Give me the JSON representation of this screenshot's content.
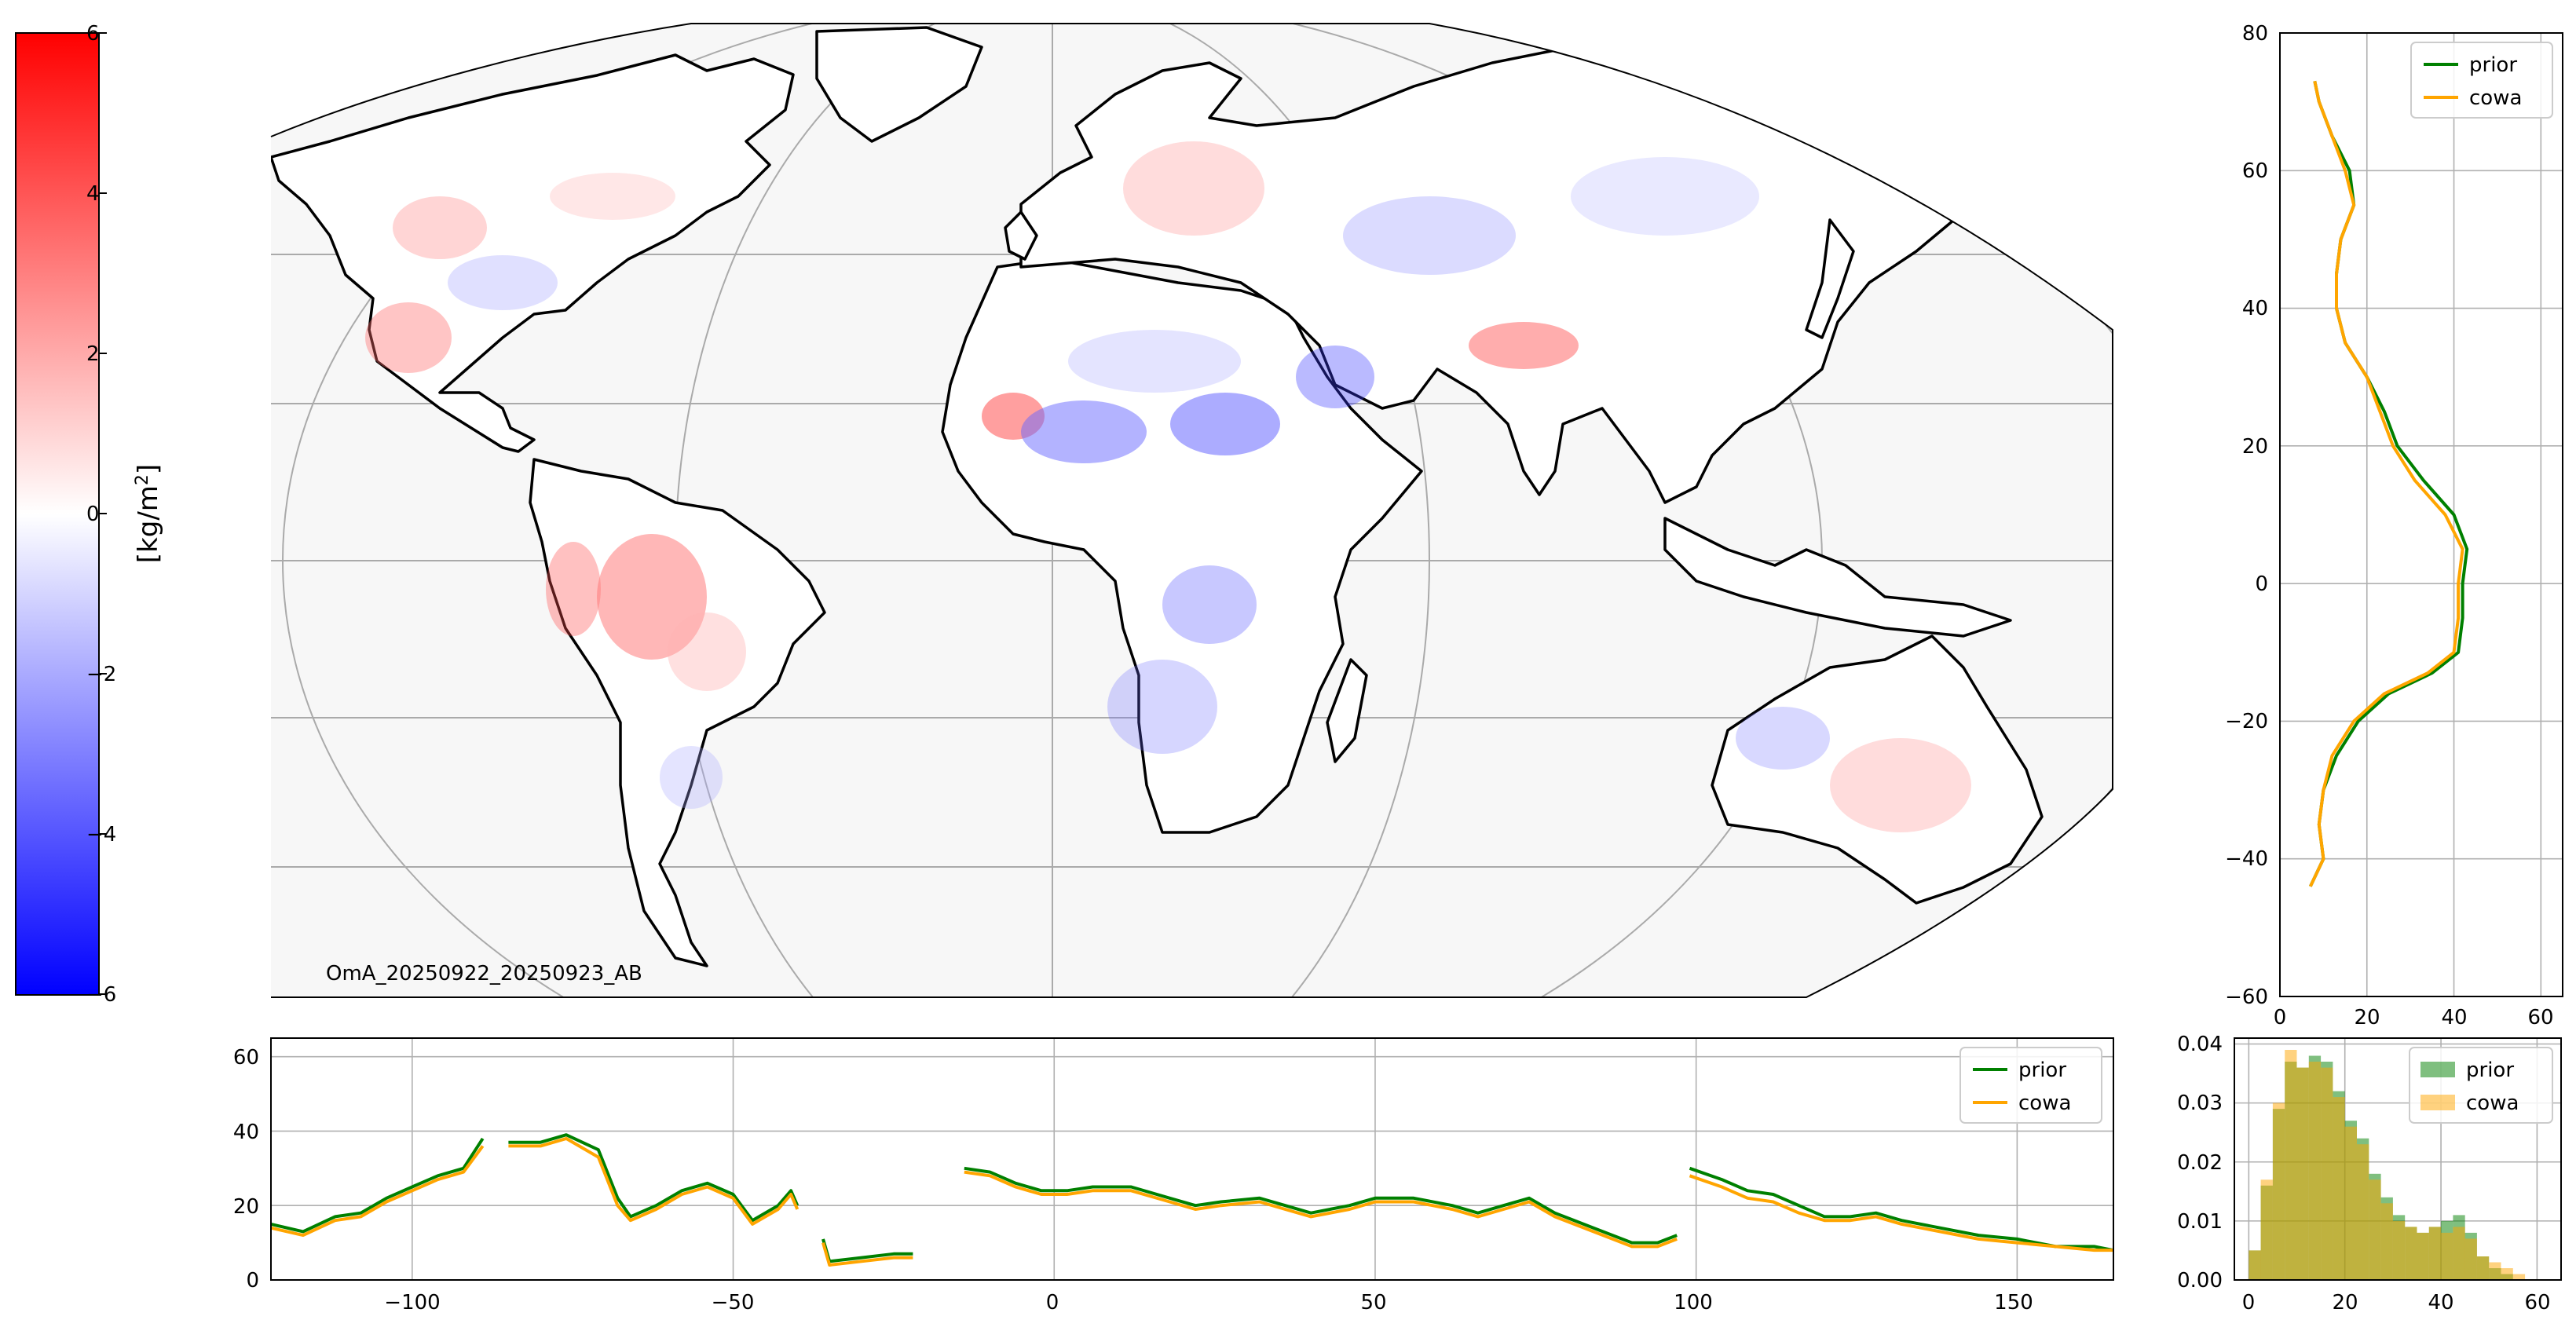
{
  "colorbar": {
    "label_main": "[kg/m",
    "label_sup": "2",
    "label_end": "]",
    "ticks": [
      "6",
      "4",
      "2",
      "0",
      "−2",
      "−4",
      "−6"
    ],
    "vmin": -6,
    "vmax": 6,
    "colormap": "bwr",
    "colors": {
      "low": "#0000ff",
      "mid": "#ffffff",
      "high": "#ff0000"
    }
  },
  "map": {
    "annotation": "OmA_20250922_20250923_AB",
    "projection": "Mollweide-like, central longitude 0",
    "ocean_color": "#f7f7f7",
    "coastline_color": "#000000",
    "graticule_color": "#aaaaaa"
  },
  "chart_data": [
    {
      "type": "line",
      "panel": "zonal-profile",
      "x_values": "latitude",
      "ylim": [
        -60,
        80
      ],
      "xlim": [
        0,
        65
      ],
      "yticks": [
        "80",
        "60",
        "40",
        "20",
        "0",
        "−20",
        "−40",
        "−60"
      ],
      "xticks": [
        "0",
        "20",
        "40",
        "60"
      ],
      "grid": true,
      "legend_position": "top-right",
      "series": [
        {
          "name": "prior",
          "color": "#008000",
          "lat": [
            73,
            70,
            65,
            60,
            55,
            50,
            45,
            40,
            35,
            30,
            25,
            20,
            15,
            10,
            5,
            0,
            -5,
            -10,
            -13,
            -16,
            -20,
            -25,
            -30,
            -35,
            -40,
            -44
          ],
          "values": [
            8,
            9,
            12,
            16,
            17,
            14,
            13,
            13,
            15,
            20,
            24,
            27,
            33,
            40,
            43,
            42,
            42,
            41,
            35,
            25,
            18,
            13,
            10,
            9,
            10,
            7
          ]
        },
        {
          "name": "cowa",
          "color": "#ffa500",
          "lat": [
            73,
            70,
            65,
            60,
            55,
            50,
            45,
            40,
            35,
            30,
            25,
            20,
            15,
            10,
            5,
            0,
            -5,
            -10,
            -13,
            -16,
            -20,
            -25,
            -30,
            -35,
            -40,
            -44
          ],
          "values": [
            8,
            9,
            12,
            15,
            17,
            14,
            13,
            13,
            15,
            20,
            23,
            26,
            31,
            38,
            42,
            41,
            41,
            40,
            34,
            24,
            17,
            12,
            10,
            9,
            10,
            7
          ]
        }
      ]
    },
    {
      "type": "line",
      "panel": "meridional-profile",
      "x_values": "longitude",
      "xlim": [
        -122,
        165
      ],
      "ylim": [
        0,
        65
      ],
      "xticks": [
        "−100",
        "−50",
        "0",
        "50",
        "100",
        "150"
      ],
      "yticks": [
        "0",
        "20",
        "40",
        "60"
      ],
      "grid": true,
      "legend_position": "top-right",
      "series": [
        {
          "name": "prior",
          "color": "#008000",
          "segments": [
            [
              [
                -122,
                15
              ],
              [
                -117,
                13
              ],
              [
                -112,
                17
              ],
              [
                -108,
                18
              ],
              [
                -104,
                22
              ],
              [
                -100,
                25
              ],
              [
                -96,
                28
              ],
              [
                -92,
                30
              ],
              [
                -89,
                38
              ]
            ],
            [
              [
                -85,
                37
              ],
              [
                -80,
                37
              ],
              [
                -76,
                39
              ],
              [
                -71,
                35
              ],
              [
                -68,
                22
              ],
              [
                -66,
                17
              ],
              [
                -62,
                20
              ],
              [
                -58,
                24
              ],
              [
                -54,
                26
              ],
              [
                -50,
                23
              ],
              [
                -47,
                16
              ],
              [
                -43,
                20
              ],
              [
                -41,
                24
              ],
              [
                -40,
                20
              ]
            ],
            [
              [
                -36,
                11
              ],
              [
                -35,
                5
              ],
              [
                -30,
                6
              ],
              [
                -25,
                7
              ],
              [
                -22,
                7
              ]
            ],
            [
              [
                -14,
                30
              ],
              [
                -10,
                29
              ],
              [
                -6,
                26
              ],
              [
                -2,
                24
              ],
              [
                2,
                24
              ],
              [
                6,
                25
              ],
              [
                12,
                25
              ],
              [
                18,
                22
              ],
              [
                22,
                20
              ],
              [
                26,
                21
              ],
              [
                32,
                22
              ],
              [
                36,
                20
              ],
              [
                40,
                18
              ],
              [
                46,
                20
              ],
              [
                50,
                22
              ],
              [
                56,
                22
              ],
              [
                62,
                20
              ],
              [
                66,
                18
              ],
              [
                70,
                20
              ],
              [
                74,
                22
              ],
              [
                78,
                18
              ],
              [
                84,
                14
              ],
              [
                90,
                10
              ],
              [
                94,
                10
              ],
              [
                97,
                12
              ]
            ],
            [
              [
                99,
                30
              ],
              [
                104,
                27
              ],
              [
                108,
                24
              ],
              [
                112,
                23
              ],
              [
                116,
                20
              ],
              [
                120,
                17
              ],
              [
                124,
                17
              ],
              [
                128,
                18
              ],
              [
                132,
                16
              ],
              [
                138,
                14
              ],
              [
                144,
                12
              ],
              [
                150,
                11
              ],
              [
                156,
                9
              ],
              [
                162,
                9
              ],
              [
                165,
                8
              ]
            ]
          ]
        },
        {
          "name": "cowa",
          "color": "#ffa500",
          "segments": [
            [
              [
                -122,
                14
              ],
              [
                -117,
                12
              ],
              [
                -112,
                16
              ],
              [
                -108,
                17
              ],
              [
                -104,
                21
              ],
              [
                -100,
                24
              ],
              [
                -96,
                27
              ],
              [
                -92,
                29
              ],
              [
                -89,
                36
              ]
            ],
            [
              [
                -85,
                36
              ],
              [
                -80,
                36
              ],
              [
                -76,
                38
              ],
              [
                -71,
                33
              ],
              [
                -68,
                20
              ],
              [
                -66,
                16
              ],
              [
                -62,
                19
              ],
              [
                -58,
                23
              ],
              [
                -54,
                25
              ],
              [
                -50,
                22
              ],
              [
                -47,
                15
              ],
              [
                -43,
                19
              ],
              [
                -41,
                23
              ],
              [
                -40,
                19
              ]
            ],
            [
              [
                -36,
                10
              ],
              [
                -35,
                4
              ],
              [
                -30,
                5
              ],
              [
                -25,
                6
              ],
              [
                -22,
                6
              ]
            ],
            [
              [
                -14,
                29
              ],
              [
                -10,
                28
              ],
              [
                -6,
                25
              ],
              [
                -2,
                23
              ],
              [
                2,
                23
              ],
              [
                6,
                24
              ],
              [
                12,
                24
              ],
              [
                18,
                21
              ],
              [
                22,
                19
              ],
              [
                26,
                20
              ],
              [
                32,
                21
              ],
              [
                36,
                19
              ],
              [
                40,
                17
              ],
              [
                46,
                19
              ],
              [
                50,
                21
              ],
              [
                56,
                21
              ],
              [
                62,
                19
              ],
              [
                66,
                17
              ],
              [
                70,
                19
              ],
              [
                74,
                21
              ],
              [
                78,
                17
              ],
              [
                84,
                13
              ],
              [
                90,
                9
              ],
              [
                94,
                9
              ],
              [
                97,
                11
              ]
            ],
            [
              [
                99,
                28
              ],
              [
                104,
                25
              ],
              [
                108,
                22
              ],
              [
                112,
                21
              ],
              [
                116,
                18
              ],
              [
                120,
                16
              ],
              [
                124,
                16
              ],
              [
                128,
                17
              ],
              [
                132,
                15
              ],
              [
                138,
                13
              ],
              [
                144,
                11
              ],
              [
                150,
                10
              ],
              [
                156,
                9
              ],
              [
                162,
                8
              ],
              [
                165,
                8
              ]
            ]
          ]
        }
      ]
    },
    {
      "type": "bar",
      "panel": "histogram",
      "xlim": [
        -3,
        65
      ],
      "ylim": [
        0,
        0.041
      ],
      "xticks": [
        "0",
        "20",
        "40",
        "60"
      ],
      "yticks": [
        "0.00",
        "0.01",
        "0.02",
        "0.03",
        "0.04"
      ],
      "grid": true,
      "legend_position": "top-right",
      "bin_edges": [
        0,
        2.5,
        5,
        7.5,
        10,
        12.5,
        15,
        17.5,
        20,
        22.5,
        25,
        27.5,
        30,
        32.5,
        35,
        37.5,
        40,
        42.5,
        45,
        47.5,
        50,
        52.5,
        55,
        57.5
      ],
      "series": [
        {
          "name": "prior",
          "color": "#008000",
          "opacity": 0.5,
          "values": [
            0.005,
            0.016,
            0.029,
            0.037,
            0.036,
            0.038,
            0.037,
            0.032,
            0.027,
            0.024,
            0.018,
            0.014,
            0.011,
            0.009,
            0.008,
            0.009,
            0.01,
            0.011,
            0.008,
            0.004,
            0.002,
            0.001,
            0.0
          ]
        },
        {
          "name": "cowa",
          "color": "#ffa500",
          "opacity": 0.5,
          "values": [
            0.005,
            0.017,
            0.03,
            0.039,
            0.036,
            0.037,
            0.036,
            0.031,
            0.026,
            0.023,
            0.017,
            0.013,
            0.01,
            0.009,
            0.008,
            0.009,
            0.008,
            0.009,
            0.007,
            0.004,
            0.003,
            0.002,
            0.001
          ]
        }
      ]
    }
  ]
}
